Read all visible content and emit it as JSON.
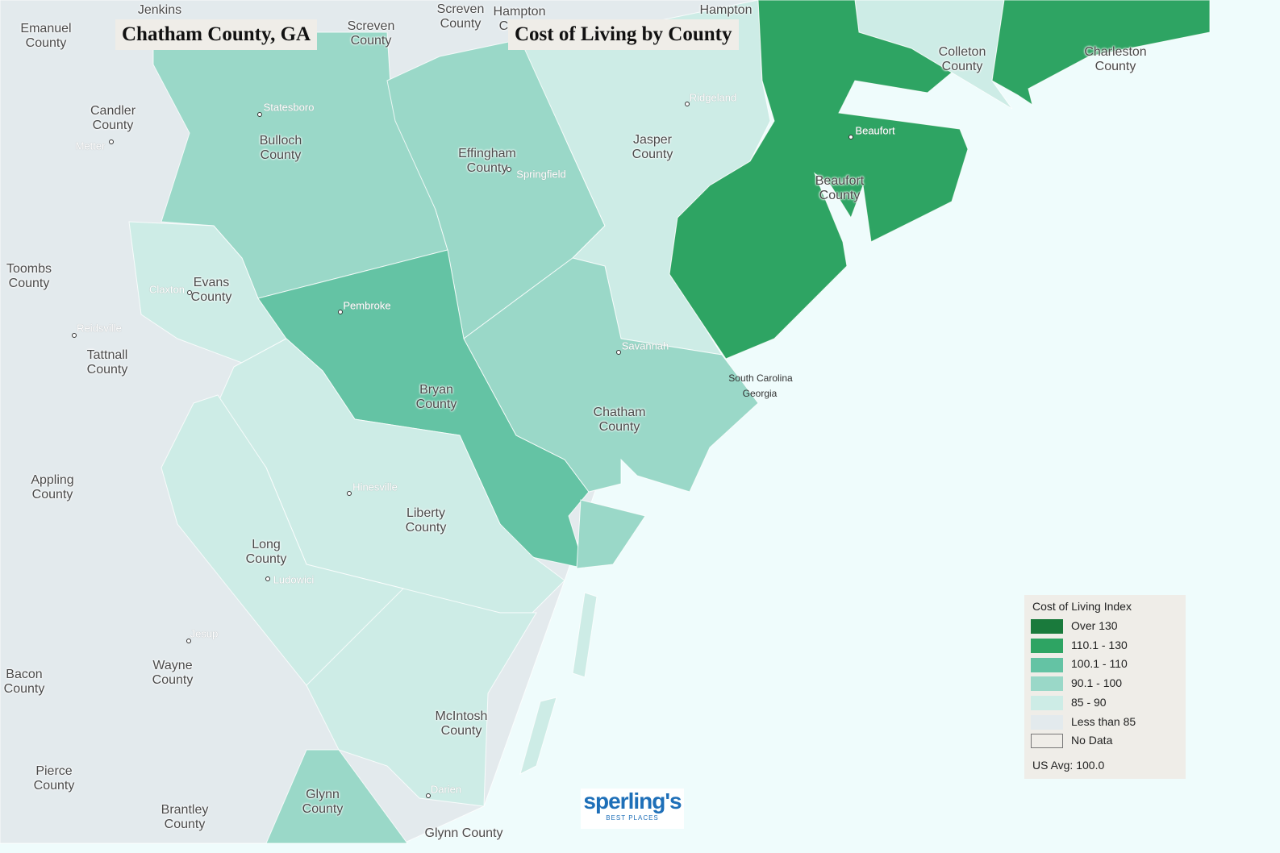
{
  "header": {
    "location": "Chatham County, GA",
    "title": "Cost of Living by County"
  },
  "counties": [
    {
      "label": "Jenkins",
      "category": 5
    },
    {
      "label": "Screven County",
      "category": 5
    },
    {
      "label": "Hampton County",
      "category": 4
    },
    {
      "label": "Hampton",
      "category": 4
    },
    {
      "label": "Emanuel County",
      "category": 5
    },
    {
      "label": "Screven County",
      "category": 5
    },
    {
      "label": "Candler County",
      "category": 5
    },
    {
      "label": "Bulloch County",
      "category": 3
    },
    {
      "label": "Effingham County",
      "category": 3
    },
    {
      "label": "Jasper County",
      "category": 4
    },
    {
      "label": "Colleton County",
      "category": 4
    },
    {
      "label": "Charleston County",
      "category": 1
    },
    {
      "label": "Beaufort County",
      "category": 1
    },
    {
      "label": "Toombs County",
      "category": 5
    },
    {
      "label": "Evans County",
      "category": 4
    },
    {
      "label": "Tattnall County",
      "category": 5
    },
    {
      "label": "Bryan County",
      "category": 2
    },
    {
      "label": "Chatham County",
      "category": 3
    },
    {
      "label": "Appling County",
      "category": 5
    },
    {
      "label": "Liberty County",
      "category": 4
    },
    {
      "label": "Long County",
      "category": 4
    },
    {
      "label": "Wayne County",
      "category": 5
    },
    {
      "label": "Bacon County",
      "category": 5
    },
    {
      "label": "McIntosh County",
      "category": 4
    },
    {
      "label": "Pierce County",
      "category": 5
    },
    {
      "label": "Brantley County",
      "category": 5
    },
    {
      "label": "Glynn County",
      "category": 3
    },
    {
      "label": "Glynn County",
      "category": 3
    }
  ],
  "states": [
    "South Carolina",
    "Georgia"
  ],
  "cities": [
    "Statesboro",
    "Metter",
    "Springfield",
    "Ridgeland",
    "Beaufort",
    "Claxton",
    "Pembroke",
    "Reidsville",
    "Savannah",
    "Hinesville",
    "Ludowici",
    "Jesup",
    "Darien"
  ],
  "legend": {
    "title": "Cost of Living Index",
    "items": [
      {
        "label": "Over 130",
        "color": "#1a7a3c"
      },
      {
        "label": "110.1 - 130",
        "color": "#2ea463"
      },
      {
        "label": "100.1 - 110",
        "color": "#64c3a4"
      },
      {
        "label": "90.1 - 100",
        "color": "#9ad8c8"
      },
      {
        "label": "85 - 90",
        "color": "#cdece6"
      },
      {
        "label": "Less than 85",
        "color": "#e3eaed"
      },
      {
        "label": "No Data",
        "color": "#efede8"
      }
    ],
    "note": "US Avg: 100.0"
  },
  "logo": {
    "name": "sperling's",
    "tagline": "BEST PLACES"
  }
}
